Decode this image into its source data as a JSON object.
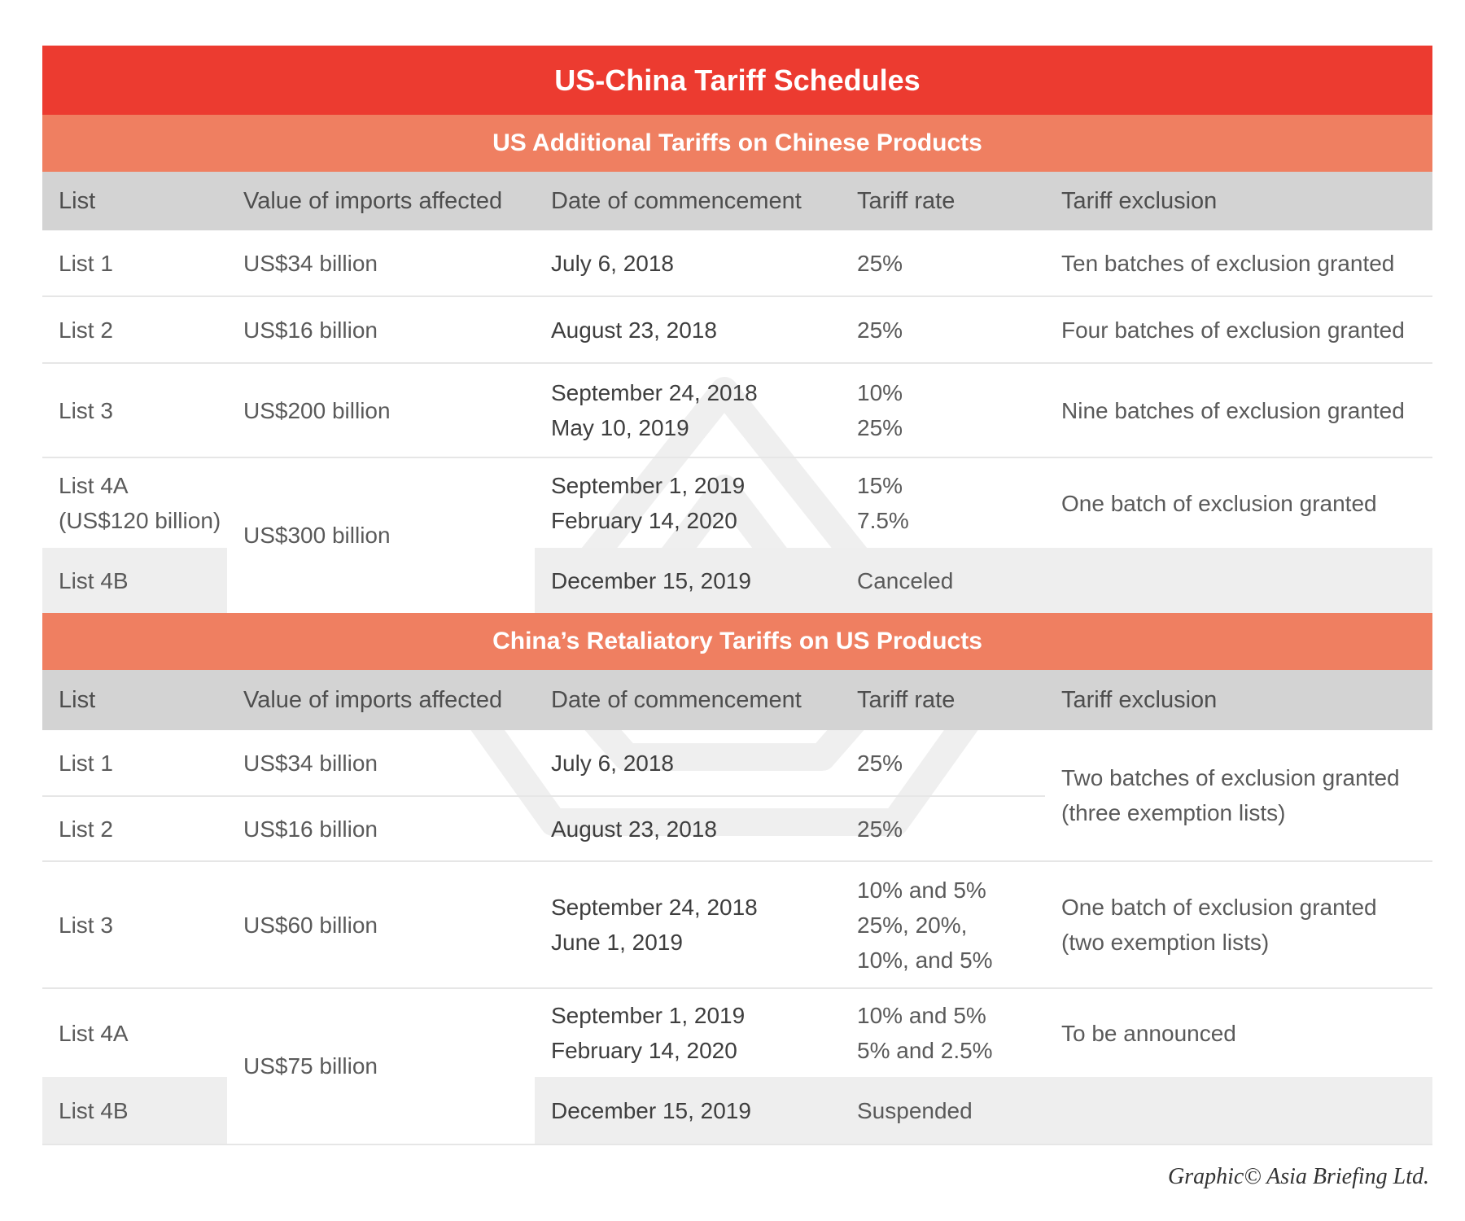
{
  "title": "US-China Tariff Schedules",
  "us_section": {
    "title": "US Additional Tariffs on Chinese Products",
    "headers": [
      "List",
      "Value of imports affected",
      "Date of commencement",
      "Tariff rate",
      "Tariff exclusion"
    ],
    "rows": [
      {
        "list": "List 1",
        "value": "US$34 billion",
        "date": "July 6, 2018",
        "rate": "25%",
        "exclusion": "Ten batches of exclusion granted"
      },
      {
        "list": "List 2",
        "value": "US$16 billion",
        "date": "August 23, 2018",
        "rate": "25%",
        "exclusion": "Four batches of exclusion granted"
      },
      {
        "list": "List 3",
        "value": "US$200 billion",
        "date1": "September 24, 2018",
        "date2": "May 10, 2019",
        "rate1": "10%",
        "rate2": "25%",
        "exclusion": "Nine batches of exclusion granted"
      },
      {
        "list1": "List 4A",
        "list2": "(US$120 billion)",
        "date1": "September 1, 2019",
        "date2": "February 14, 2020",
        "rate1": "15%",
        "rate2": "7.5%",
        "exclusion": "One batch of exclusion granted"
      },
      {
        "list": "List 4B",
        "date": "December 15, 2019",
        "rate": "Canceled"
      }
    ],
    "list4_value": "US$300 billion"
  },
  "china_section": {
    "title": "China’s Retaliatory Tariffs on US Products",
    "headers": [
      "List",
      "Value of imports affected",
      "Date of commencement",
      "Tariff rate",
      "Tariff exclusion"
    ],
    "rows": [
      {
        "list": "List 1",
        "value": "US$34 billion",
        "date": "July 6, 2018",
        "rate": "25%"
      },
      {
        "list": "List 2",
        "value": "US$16 billion",
        "date": "August 23, 2018",
        "rate": "25%"
      },
      {
        "list": "List 3",
        "value": "US$60 billion",
        "date1": "September 24, 2018",
        "date2": "June 1, 2019",
        "rate1": "10% and 5%",
        "rate2": "25%, 20%,",
        "rate3": "10%, and 5%",
        "exclusion1": "One batch of exclusion granted",
        "exclusion2": "(two exemption lists)"
      },
      {
        "list": "List 4A",
        "date1": "September 1, 2019",
        "date2": "February 14, 2020",
        "rate1": "10% and 5%",
        "rate2": "5% and 2.5%",
        "exclusion": "To be announced"
      },
      {
        "list": "List 4B",
        "date": "December 15, 2019",
        "rate": "Suspended"
      }
    ],
    "list12_exclusion1": "Two batches of exclusion granted",
    "list12_exclusion2": "(three exemption lists)",
    "list4_value": "US$75 billion"
  },
  "footer": "Graphic© Asia Briefing Ltd.",
  "colors": {
    "title_bar": "#ec3b30",
    "section_bar": "#ef7f61",
    "header_row": "#d3d3d3",
    "shaded_row": "#eeeeee"
  }
}
